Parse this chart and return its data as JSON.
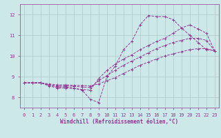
{
  "xlabel": "Windchill (Refroidissement éolien,°C)",
  "bg_color": "#cce8e8",
  "grid_color": "#aacccc",
  "line_color": "#993399",
  "xlim": [
    -0.5,
    23.5
  ],
  "ylim": [
    7.5,
    12.5
  ],
  "yticks": [
    8,
    9,
    10,
    11,
    12
  ],
  "xticks": [
    0,
    1,
    2,
    3,
    4,
    5,
    6,
    7,
    8,
    9,
    10,
    11,
    12,
    13,
    14,
    15,
    16,
    17,
    18,
    19,
    20,
    21,
    22,
    23
  ],
  "lines": [
    {
      "x": [
        0,
        1,
        2,
        3,
        4,
        5,
        6,
        7,
        8,
        9,
        10,
        11,
        12,
        13,
        14,
        15,
        16,
        17,
        18,
        19,
        20,
        21,
        22,
        23
      ],
      "y": [
        8.7,
        8.7,
        8.7,
        8.6,
        8.5,
        8.5,
        8.45,
        8.35,
        7.9,
        7.75,
        9.0,
        9.5,
        10.3,
        10.7,
        11.5,
        11.95,
        11.9,
        11.9,
        11.75,
        11.35,
        11.0,
        10.65,
        10.3,
        10.25
      ]
    },
    {
      "x": [
        0,
        1,
        2,
        3,
        4,
        5,
        6,
        7,
        8,
        9,
        10,
        11,
        12,
        13,
        14,
        15,
        16,
        17,
        18,
        19,
        20,
        21,
        22,
        23
      ],
      "y": [
        8.7,
        8.7,
        8.7,
        8.55,
        8.45,
        8.45,
        8.42,
        8.38,
        8.35,
        8.9,
        9.3,
        9.6,
        9.85,
        10.05,
        10.3,
        10.5,
        10.7,
        10.85,
        11.1,
        11.35,
        11.5,
        11.3,
        11.1,
        10.25
      ]
    },
    {
      "x": [
        0,
        1,
        2,
        3,
        4,
        5,
        6,
        7,
        8,
        9,
        10,
        11,
        12,
        13,
        14,
        15,
        16,
        17,
        18,
        19,
        20,
        21,
        22,
        23
      ],
      "y": [
        8.7,
        8.7,
        8.7,
        8.6,
        8.55,
        8.55,
        8.53,
        8.5,
        8.47,
        8.8,
        9.05,
        9.3,
        9.55,
        9.75,
        9.95,
        10.15,
        10.35,
        10.5,
        10.65,
        10.75,
        10.85,
        10.85,
        10.75,
        10.25
      ]
    },
    {
      "x": [
        0,
        1,
        2,
        3,
        4,
        5,
        6,
        7,
        8,
        9,
        10,
        11,
        12,
        13,
        14,
        15,
        16,
        17,
        18,
        19,
        20,
        21,
        22,
        23
      ],
      "y": [
        8.7,
        8.7,
        8.7,
        8.65,
        8.6,
        8.6,
        8.58,
        8.57,
        8.55,
        8.65,
        8.8,
        8.95,
        9.15,
        9.35,
        9.55,
        9.7,
        9.85,
        10.0,
        10.1,
        10.2,
        10.3,
        10.35,
        10.35,
        10.25
      ]
    }
  ]
}
